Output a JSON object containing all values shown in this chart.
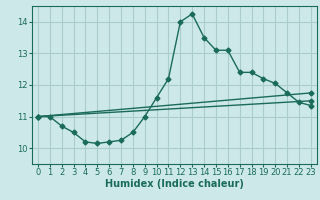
{
  "xlabel": "Humidex (Indice chaleur)",
  "bg_color": "#cce8e8",
  "grid_color": "#aacccc",
  "line_color": "#1a6b5a",
  "xlim": [
    -0.5,
    23.5
  ],
  "ylim": [
    9.5,
    14.5
  ],
  "xticks": [
    0,
    1,
    2,
    3,
    4,
    5,
    6,
    7,
    8,
    9,
    10,
    11,
    12,
    13,
    14,
    15,
    16,
    17,
    18,
    19,
    20,
    21,
    22,
    23
  ],
  "yticks": [
    10,
    11,
    12,
    13,
    14
  ],
  "series": [
    {
      "x": [
        0,
        1,
        2,
        3,
        4,
        5,
        6,
        7,
        8,
        9,
        10,
        11,
        12,
        13,
        14,
        15,
        16,
        17,
        18,
        19,
        20,
        21,
        22,
        23
      ],
      "y": [
        11.0,
        11.0,
        10.7,
        10.5,
        10.2,
        10.15,
        10.2,
        10.25,
        10.5,
        11.0,
        11.6,
        12.2,
        14.0,
        14.25,
        13.5,
        13.1,
        13.1,
        12.4,
        12.4,
        12.2,
        12.05,
        11.75,
        11.45,
        11.35
      ]
    },
    {
      "x": [
        0,
        23
      ],
      "y": [
        11.0,
        11.75
      ]
    },
    {
      "x": [
        0,
        23
      ],
      "y": [
        11.0,
        11.5
      ]
    }
  ]
}
